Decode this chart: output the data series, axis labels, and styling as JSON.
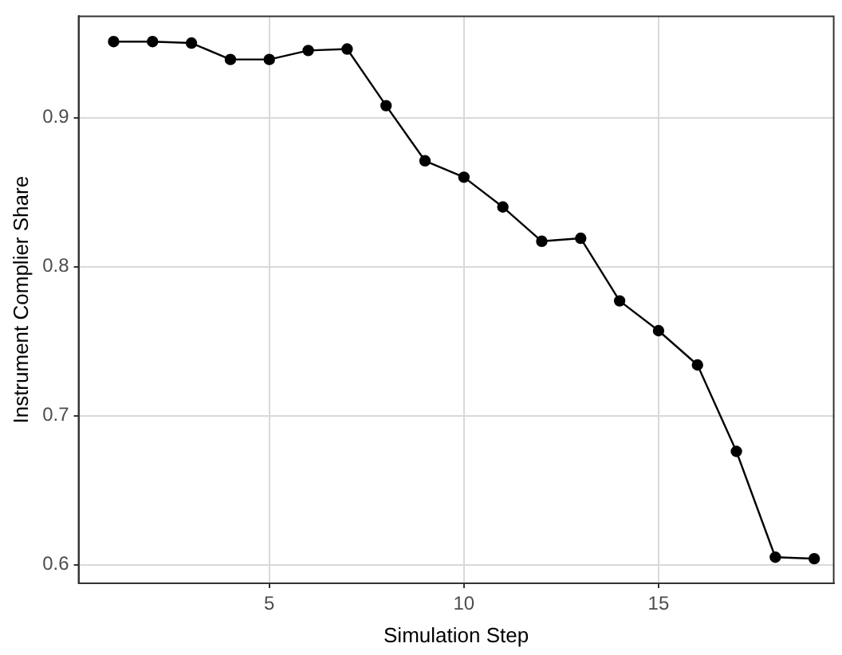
{
  "chart_data": {
    "type": "line",
    "xlabel": "Simulation Step",
    "ylabel": "Instrument Complier Share",
    "x": [
      1,
      2,
      3,
      4,
      5,
      6,
      7,
      8,
      9,
      10,
      11,
      12,
      13,
      14,
      15,
      16,
      17,
      18,
      19
    ],
    "series": [
      {
        "color": "#000000",
        "values": [
          0.951,
          0.951,
          0.95,
          0.939,
          0.939,
          0.945,
          0.946,
          0.908,
          0.871,
          0.86,
          0.84,
          0.817,
          0.819,
          0.777,
          0.757,
          0.734,
          0.676,
          0.605,
          0.604
        ]
      }
    ],
    "xlim": [
      0.1,
      19.5
    ],
    "ylim": [
      0.5875,
      0.968
    ],
    "xticks": [
      5,
      10,
      15
    ],
    "yticks": [
      0.6,
      0.7,
      0.8,
      0.9
    ],
    "grid": true,
    "marker": "circle",
    "line_style": "solid",
    "legend": false
  }
}
